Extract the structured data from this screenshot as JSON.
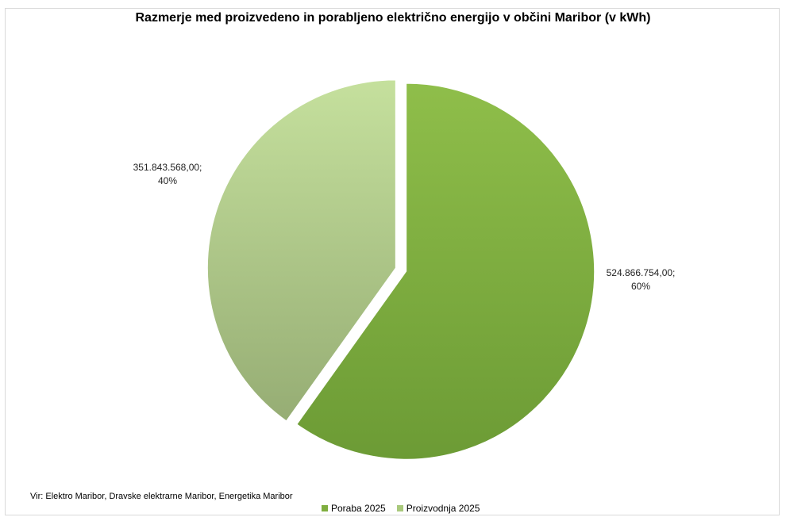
{
  "chart_data": {
    "type": "pie",
    "title": "Razmerje med proizvedeno in porabljeno električno energijo v občini Maribor (v kWh)",
    "slices": [
      {
        "name": "Poraba 2025",
        "value": 524866754.0,
        "percent": 60,
        "value_label": "524.866.754,00;",
        "percent_label": "60%",
        "color": "#8ab548",
        "exploded": true
      },
      {
        "name": "Proizvodnja 2025",
        "value": 351843568.0,
        "percent": 40,
        "value_label": "351.843.568,00;",
        "percent_label": "40%",
        "color": "#b7d58c",
        "exploded": true
      }
    ],
    "legend_position": "bottom",
    "source": "Vir: Elektro Maribor, Dravske elektrarne Maribor, Energetika Maribor"
  }
}
